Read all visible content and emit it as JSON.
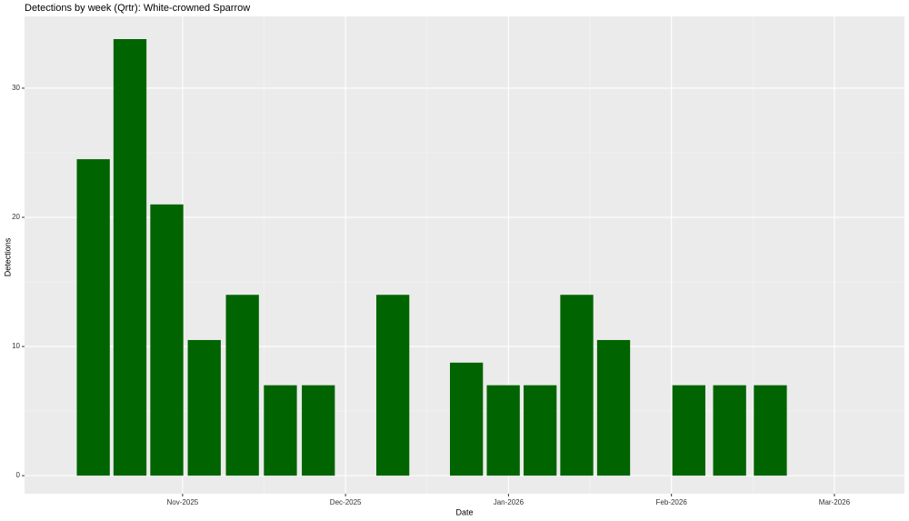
{
  "chart_data": {
    "type": "bar",
    "title": "Detections by week (Qrtr): White-crowned Sparrow",
    "x_label": "Date",
    "y_label": "Detections",
    "x": [
      10.452,
      10.677,
      10.903,
      11.133,
      11.367,
      11.6,
      11.833,
      12.29,
      12.742,
      12.968,
      13.194,
      13.419,
      13.645,
      14.107,
      14.357,
      14.607
    ],
    "values": [
      24.5,
      33.8,
      21,
      10.5,
      14,
      7,
      7,
      14,
      8.75,
      7,
      7,
      14,
      10.5,
      7,
      7,
      7
    ],
    "color": "#006400",
    "xlim": [
      10.03,
      15.43
    ],
    "xticks": [
      {
        "value": 11,
        "label": "Nov-2025"
      },
      {
        "value": 12,
        "label": "Dec-2025"
      },
      {
        "value": 13,
        "label": "Jan-2026"
      },
      {
        "value": 14,
        "label": "Feb-2026"
      },
      {
        "value": 15,
        "label": "Mar-2026"
      }
    ],
    "ylim": [
      -1.4,
      35.56
    ],
    "yticks": [
      0,
      10,
      20,
      30
    ],
    "grid": true
  }
}
